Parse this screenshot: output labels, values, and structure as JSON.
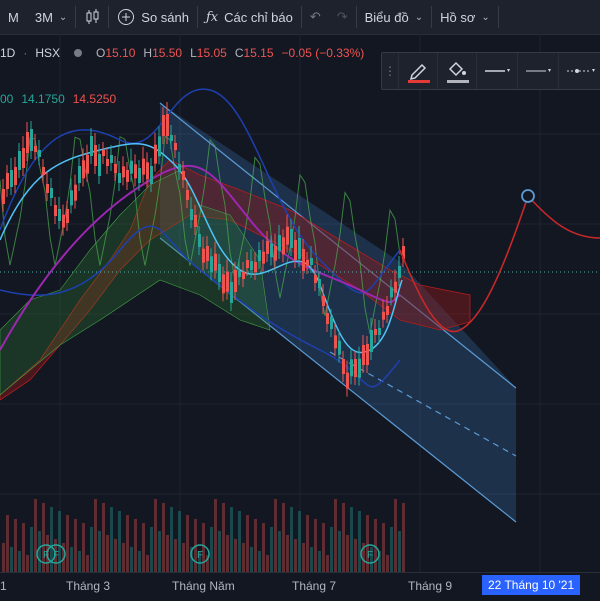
{
  "toolbar": {
    "interval_m": "M",
    "interval_3m": "3M",
    "compare": "So sánh",
    "indicators": "Các chỉ báo",
    "chart": "Biểu đồ",
    "profile": "Hồ sơ"
  },
  "legend": {
    "interval": "1D",
    "exchange": "HSX",
    "open_label": "O",
    "open": "15.10",
    "high_label": "H",
    "high": "15.50",
    "low_label": "L",
    "low": "15.05",
    "close_label": "C",
    "close": "15.15",
    "change": "−0.05 (−0.33%)",
    "ind_prefix": "00",
    "ind_val1": "14.1750",
    "ind_val2": "14.5250"
  },
  "xaxis": {
    "labels": [
      "1",
      "Tháng 3",
      "Tháng Năm",
      "Tháng 7",
      "Tháng 9"
    ],
    "current_date": "22 Tháng 10 '21"
  },
  "colors": {
    "background": "#131722",
    "up": "#26a69a",
    "down": "#ef5350",
    "accent": "#2962ff",
    "channel": "#5b9bd5"
  },
  "events": [
    {
      "label": "F"
    },
    {
      "label": "F"
    },
    {
      "label": "F"
    },
    {
      "label": "F"
    }
  ]
}
